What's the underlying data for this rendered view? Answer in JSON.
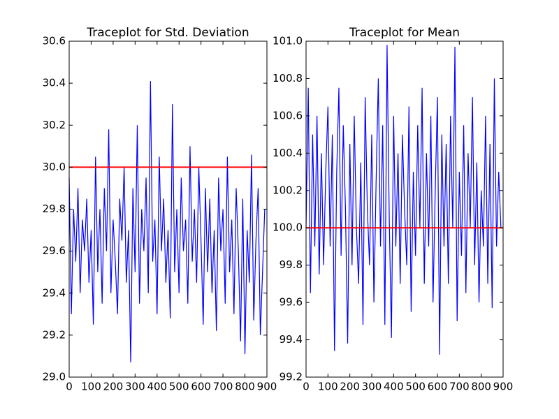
{
  "chart_data": [
    {
      "type": "line",
      "title": "Traceplot for Std. Deviation",
      "x": [
        0,
        10,
        20,
        30,
        40,
        50,
        60,
        70,
        80,
        90,
        100,
        110,
        120,
        130,
        140,
        150,
        160,
        170,
        180,
        190,
        200,
        210,
        220,
        230,
        240,
        250,
        260,
        270,
        280,
        290,
        300,
        310,
        320,
        330,
        340,
        350,
        360,
        370,
        380,
        390,
        400,
        410,
        420,
        430,
        440,
        450,
        460,
        470,
        480,
        490,
        500,
        510,
        520,
        530,
        540,
        550,
        560,
        570,
        580,
        590,
        600,
        610,
        620,
        630,
        640,
        650,
        660,
        670,
        680,
        690,
        700,
        710,
        720,
        730,
        740,
        750,
        760,
        770,
        780,
        790,
        800,
        810,
        820,
        830,
        840,
        850,
        860,
        870,
        880,
        890
      ],
      "series": [
        {
          "color": "#0000ff",
          "values": [
            29.95,
            29.3,
            29.8,
            29.55,
            29.9,
            29.4,
            29.75,
            29.6,
            29.85,
            29.45,
            29.7,
            29.25,
            30.05,
            29.5,
            29.8,
            29.35,
            29.9,
            29.6,
            30.18,
            29.4,
            29.75,
            29.55,
            29.3,
            29.85,
            29.65,
            30.0,
            29.45,
            29.7,
            29.07,
            29.9,
            29.5,
            30.2,
            29.35,
            29.8,
            29.6,
            29.95,
            29.4,
            30.41,
            29.55,
            29.75,
            29.3,
            30.05,
            29.6,
            29.85,
            29.45,
            29.7,
            29.28,
            30.3,
            29.5,
            29.8,
            29.4,
            29.95,
            29.6,
            29.75,
            29.35,
            30.1,
            29.55,
            29.8,
            29.45,
            30.0,
            29.65,
            29.25,
            29.9,
            29.5,
            29.85,
            29.4,
            29.7,
            29.22,
            29.95,
            29.6,
            29.8,
            29.35,
            30.05,
            29.5,
            29.75,
            29.3,
            29.9,
            29.6,
            29.17,
            29.85,
            29.11,
            29.7,
            29.45,
            30.06,
            29.27,
            29.65,
            29.9,
            29.2,
            29.5,
            29.8
          ]
        }
      ],
      "hline": {
        "value": 30,
        "color": "#ff0000"
      },
      "xlim": [
        0,
        900
      ],
      "xticks": [
        0,
        100,
        200,
        300,
        400,
        500,
        600,
        700,
        800,
        900
      ],
      "ylim": [
        29,
        30.6
      ],
      "yticks": [
        {
          "value": 29,
          "label": "29.0"
        },
        29.2,
        29.4,
        29.6,
        29.8,
        {
          "value": 30,
          "label": "30.0"
        },
        30.2,
        30.4,
        30.6
      ]
    },
    {
      "type": "line",
      "title": "Traceplot for Mean",
      "x": [
        0,
        10,
        20,
        30,
        40,
        50,
        60,
        70,
        80,
        90,
        100,
        110,
        120,
        130,
        140,
        150,
        160,
        170,
        180,
        190,
        200,
        210,
        220,
        230,
        240,
        250,
        260,
        270,
        280,
        290,
        300,
        310,
        320,
        330,
        340,
        350,
        360,
        370,
        380,
        390,
        400,
        410,
        420,
        430,
        440,
        450,
        460,
        470,
        480,
        490,
        500,
        510,
        520,
        530,
        540,
        550,
        560,
        570,
        580,
        590,
        600,
        610,
        620,
        630,
        640,
        650,
        660,
        670,
        680,
        690,
        700,
        710,
        720,
        730,
        740,
        750,
        760,
        770,
        780,
        790,
        800,
        810,
        820,
        830,
        840,
        850,
        860,
        870,
        880,
        890
      ],
      "series": [
        {
          "color": "#0000ff",
          "values": [
            100.0,
            100.75,
            99.65,
            100.5,
            99.9,
            100.6,
            99.75,
            100.4,
            99.8,
            100.3,
            100.65,
            99.9,
            100.5,
            99.34,
            100.3,
            100.75,
            99.85,
            100.55,
            100.1,
            99.38,
            100.45,
            99.8,
            100.6,
            100.0,
            99.7,
            100.35,
            99.48,
            100.7,
            100.1,
            99.8,
            100.5,
            99.6,
            100.25,
            100.8,
            99.9,
            100.55,
            99.48,
            100.98,
            100.05,
            99.41,
            100.6,
            99.9,
            100.4,
            99.7,
            100.5,
            100.1,
            99.8,
            100.65,
            99.55,
            100.3,
            99.85,
            100.55,
            100.0,
            100.75,
            99.7,
            100.4,
            99.9,
            100.6,
            99.6,
            100.2,
            100.7,
            99.32,
            100.5,
            99.9,
            100.45,
            99.7,
            100.6,
            100.0,
            100.97,
            99.5,
            100.3,
            99.85,
            100.55,
            99.65,
            100.4,
            100.0,
            100.7,
            99.8,
            100.35,
            99.6,
            100.2,
            99.9,
            100.6,
            99.7,
            100.45,
            99.57,
            100.8,
            99.9,
            100.3,
            100.0
          ]
        }
      ],
      "hline": {
        "value": 100,
        "color": "#ff0000"
      },
      "xlim": [
        0,
        900
      ],
      "xticks": [
        0,
        100,
        200,
        300,
        400,
        500,
        600,
        700,
        800,
        900
      ],
      "ylim": [
        99.2,
        101
      ],
      "yticks": [
        99.2,
        99.4,
        99.6,
        99.8,
        {
          "value": 100,
          "label": "100.0"
        },
        100.2,
        100.4,
        100.6,
        100.8,
        {
          "value": 101,
          "label": "101.0"
        }
      ]
    }
  ]
}
